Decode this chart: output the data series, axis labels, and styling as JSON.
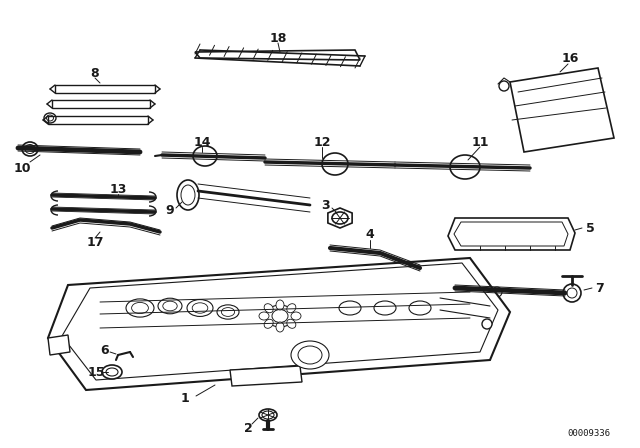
{
  "bg_color": "#ffffff",
  "line_color": "#1a1a1a",
  "diagram_id": "00009336",
  "fig_w": 6.4,
  "fig_h": 4.48,
  "dpi": 100
}
